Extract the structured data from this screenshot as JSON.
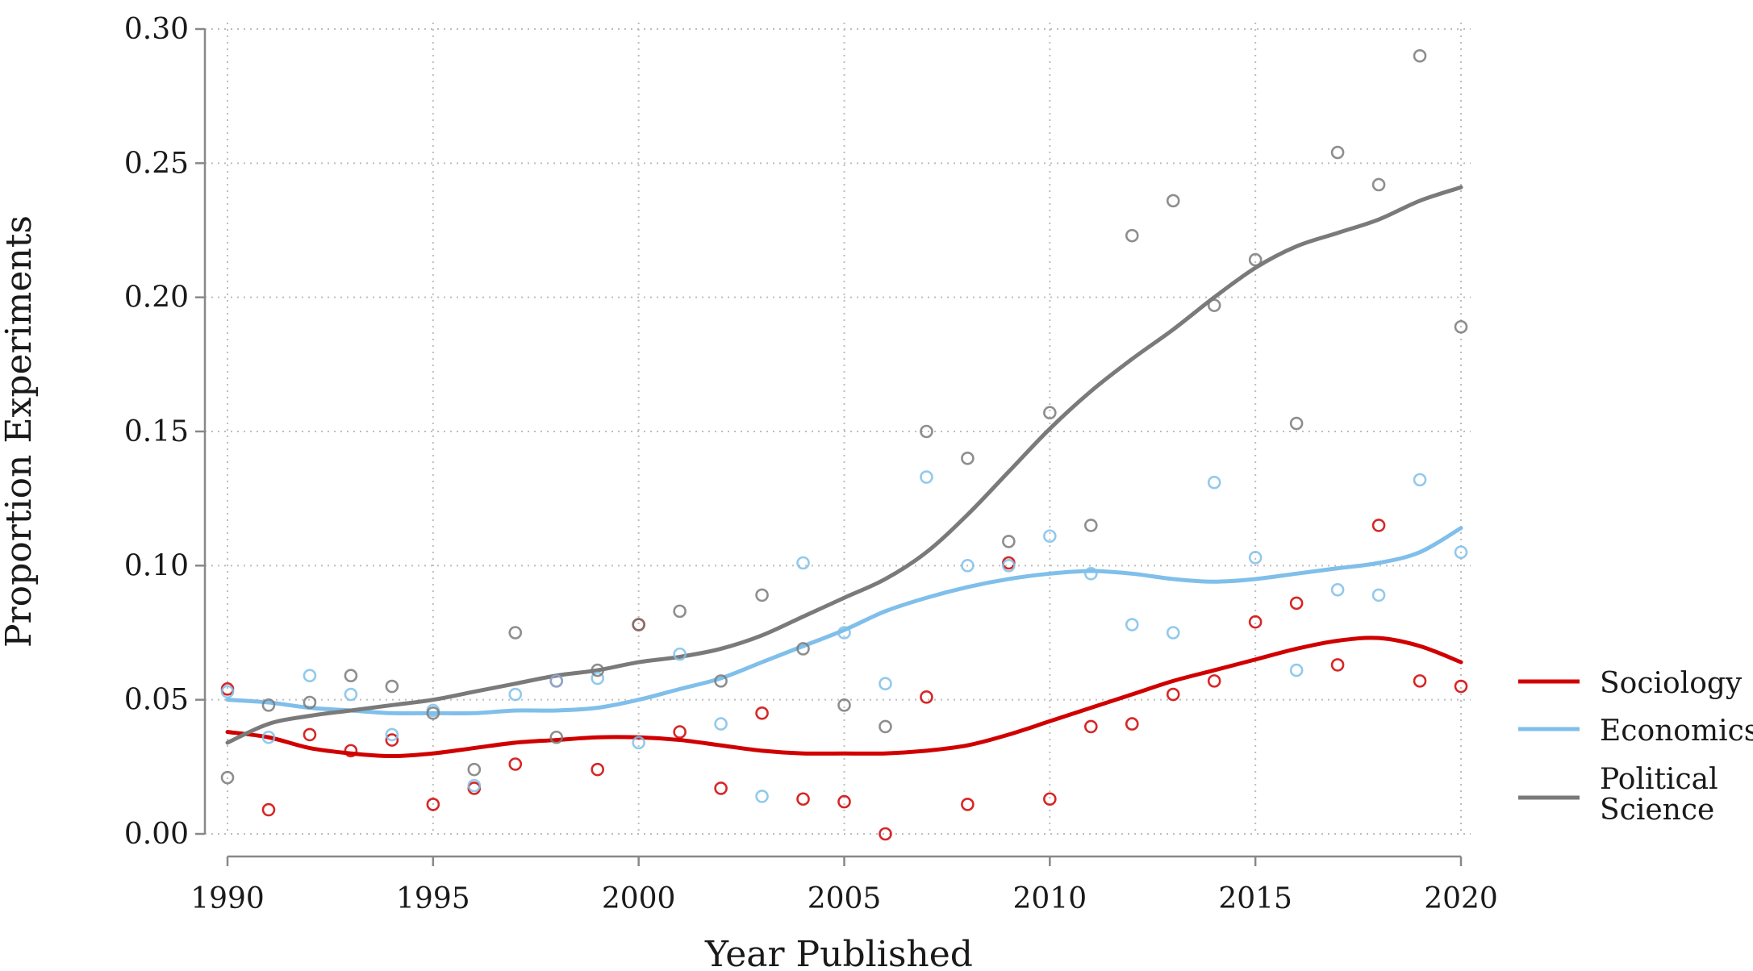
{
  "chart_data": {
    "type": "scatter",
    "title": "",
    "xlabel": "Year Published",
    "ylabel": "Proportion Experiments",
    "xlim": [
      1990,
      2020
    ],
    "ylim": [
      0,
      0.3
    ],
    "x_ticks": [
      1990,
      1995,
      2000,
      2005,
      2010,
      2015,
      2020
    ],
    "x_tick_labels": [
      "1990",
      "1995",
      "2000",
      "2005",
      "2010",
      "2015",
      "2020"
    ],
    "y_ticks": [
      0,
      0.05,
      0.1,
      0.15,
      0.2,
      0.25,
      0.3
    ],
    "y_tick_labels": [
      "0.00",
      "0.05",
      "0.10",
      "0.15",
      "0.20",
      "0.25",
      "0.30"
    ],
    "grid": true,
    "legend_position": "right",
    "series": [
      {
        "name": "Sociology",
        "color": "#d00000",
        "points": [
          [
            1990,
            0.054
          ],
          [
            1991,
            0.009
          ],
          [
            1992,
            0.037
          ],
          [
            1993,
            0.031
          ],
          [
            1994,
            0.035
          ],
          [
            1995,
            0.011
          ],
          [
            1996,
            0.017
          ],
          [
            1997,
            0.026
          ],
          [
            1998,
            0.057
          ],
          [
            1999,
            0.024
          ],
          [
            2000,
            0.078
          ],
          [
            2001,
            0.038
          ],
          [
            2002,
            0.017
          ],
          [
            2003,
            0.045
          ],
          [
            2004,
            0.013
          ],
          [
            2005,
            0.012
          ],
          [
            2006,
            0.0
          ],
          [
            2007,
            0.051
          ],
          [
            2008,
            0.011
          ],
          [
            2009,
            0.101
          ],
          [
            2010,
            0.013
          ],
          [
            2011,
            0.04
          ],
          [
            2012,
            0.041
          ],
          [
            2013,
            0.052
          ],
          [
            2014,
            0.057
          ],
          [
            2015,
            0.079
          ],
          [
            2016,
            0.086
          ],
          [
            2017,
            0.063
          ],
          [
            2018,
            0.115
          ],
          [
            2019,
            0.057
          ],
          [
            2020,
            0.055
          ]
        ],
        "smooth": [
          [
            1990,
            0.038
          ],
          [
            1991,
            0.036
          ],
          [
            1992,
            0.032
          ],
          [
            1993,
            0.03
          ],
          [
            1994,
            0.029
          ],
          [
            1995,
            0.03
          ],
          [
            1996,
            0.032
          ],
          [
            1997,
            0.034
          ],
          [
            1998,
            0.035
          ],
          [
            1999,
            0.036
          ],
          [
            2000,
            0.036
          ],
          [
            2001,
            0.035
          ],
          [
            2002,
            0.033
          ],
          [
            2003,
            0.031
          ],
          [
            2004,
            0.03
          ],
          [
            2005,
            0.03
          ],
          [
            2006,
            0.03
          ],
          [
            2007,
            0.031
          ],
          [
            2008,
            0.033
          ],
          [
            2009,
            0.037
          ],
          [
            2010,
            0.042
          ],
          [
            2011,
            0.047
          ],
          [
            2012,
            0.052
          ],
          [
            2013,
            0.057
          ],
          [
            2014,
            0.061
          ],
          [
            2015,
            0.065
          ],
          [
            2016,
            0.069
          ],
          [
            2017,
            0.072
          ],
          [
            2018,
            0.073
          ],
          [
            2019,
            0.07
          ],
          [
            2020,
            0.064
          ]
        ]
      },
      {
        "name": "Economics",
        "color": "#7fbfea",
        "points": [
          [
            1990,
            0.053
          ],
          [
            1991,
            0.036
          ],
          [
            1992,
            0.059
          ],
          [
            1993,
            0.052
          ],
          [
            1994,
            0.037
          ],
          [
            1995,
            0.046
          ],
          [
            1996,
            0.018
          ],
          [
            1997,
            0.052
          ],
          [
            1998,
            0.057
          ],
          [
            1999,
            0.058
          ],
          [
            2000,
            0.034
          ],
          [
            2001,
            0.067
          ],
          [
            2002,
            0.041
          ],
          [
            2003,
            0.014
          ],
          [
            2004,
            0.101
          ],
          [
            2005,
            0.075
          ],
          [
            2006,
            0.056
          ],
          [
            2007,
            0.133
          ],
          [
            2008,
            0.1
          ],
          [
            2009,
            0.1
          ],
          [
            2010,
            0.111
          ],
          [
            2011,
            0.097
          ],
          [
            2012,
            0.078
          ],
          [
            2013,
            0.075
          ],
          [
            2014,
            0.131
          ],
          [
            2015,
            0.103
          ],
          [
            2016,
            0.061
          ],
          [
            2017,
            0.091
          ],
          [
            2018,
            0.089
          ],
          [
            2019,
            0.132
          ],
          [
            2020,
            0.105
          ]
        ],
        "smooth": [
          [
            1990,
            0.05
          ],
          [
            1991,
            0.049
          ],
          [
            1992,
            0.047
          ],
          [
            1993,
            0.046
          ],
          [
            1994,
            0.045
          ],
          [
            1995,
            0.045
          ],
          [
            1996,
            0.045
          ],
          [
            1997,
            0.046
          ],
          [
            1998,
            0.046
          ],
          [
            1999,
            0.047
          ],
          [
            2000,
            0.05
          ],
          [
            2001,
            0.054
          ],
          [
            2002,
            0.058
          ],
          [
            2003,
            0.064
          ],
          [
            2004,
            0.07
          ],
          [
            2005,
            0.076
          ],
          [
            2006,
            0.083
          ],
          [
            2007,
            0.088
          ],
          [
            2008,
            0.092
          ],
          [
            2009,
            0.095
          ],
          [
            2010,
            0.097
          ],
          [
            2011,
            0.098
          ],
          [
            2012,
            0.097
          ],
          [
            2013,
            0.095
          ],
          [
            2014,
            0.094
          ],
          [
            2015,
            0.095
          ],
          [
            2016,
            0.097
          ],
          [
            2017,
            0.099
          ],
          [
            2018,
            0.101
          ],
          [
            2019,
            0.105
          ],
          [
            2020,
            0.114
          ]
        ]
      },
      {
        "name": "Political\nScience",
        "color": "#7a7a7a",
        "points": [
          [
            1990,
            0.021
          ],
          [
            1991,
            0.048
          ],
          [
            1992,
            0.049
          ],
          [
            1993,
            0.059
          ],
          [
            1994,
            0.055
          ],
          [
            1995,
            0.045
          ],
          [
            1996,
            0.024
          ],
          [
            1997,
            0.075
          ],
          [
            1998,
            0.036
          ],
          [
            1999,
            0.061
          ],
          [
            2000,
            0.078
          ],
          [
            2001,
            0.083
          ],
          [
            2002,
            0.057
          ],
          [
            2003,
            0.089
          ],
          [
            2004,
            0.069
          ],
          [
            2005,
            0.048
          ],
          [
            2006,
            0.04
          ],
          [
            2007,
            0.15
          ],
          [
            2008,
            0.14
          ],
          [
            2009,
            0.109
          ],
          [
            2010,
            0.157
          ],
          [
            2011,
            0.115
          ],
          [
            2012,
            0.223
          ],
          [
            2013,
            0.236
          ],
          [
            2014,
            0.197
          ],
          [
            2015,
            0.214
          ],
          [
            2016,
            0.153
          ],
          [
            2017,
            0.254
          ],
          [
            2018,
            0.242
          ],
          [
            2019,
            0.29
          ],
          [
            2020,
            0.189
          ]
        ],
        "smooth": [
          [
            1990,
            0.034
          ],
          [
            1991,
            0.041
          ],
          [
            1992,
            0.044
          ],
          [
            1993,
            0.046
          ],
          [
            1994,
            0.048
          ],
          [
            1995,
            0.05
          ],
          [
            1996,
            0.053
          ],
          [
            1997,
            0.056
          ],
          [
            1998,
            0.059
          ],
          [
            1999,
            0.061
          ],
          [
            2000,
            0.064
          ],
          [
            2001,
            0.066
          ],
          [
            2002,
            0.069
          ],
          [
            2003,
            0.074
          ],
          [
            2004,
            0.081
          ],
          [
            2005,
            0.088
          ],
          [
            2006,
            0.095
          ],
          [
            2007,
            0.105
          ],
          [
            2008,
            0.119
          ],
          [
            2009,
            0.135
          ],
          [
            2010,
            0.151
          ],
          [
            2011,
            0.165
          ],
          [
            2012,
            0.177
          ],
          [
            2013,
            0.188
          ],
          [
            2014,
            0.2
          ],
          [
            2015,
            0.211
          ],
          [
            2016,
            0.219
          ],
          [
            2017,
            0.224
          ],
          [
            2018,
            0.229
          ],
          [
            2019,
            0.236
          ],
          [
            2020,
            0.241
          ]
        ]
      }
    ]
  }
}
